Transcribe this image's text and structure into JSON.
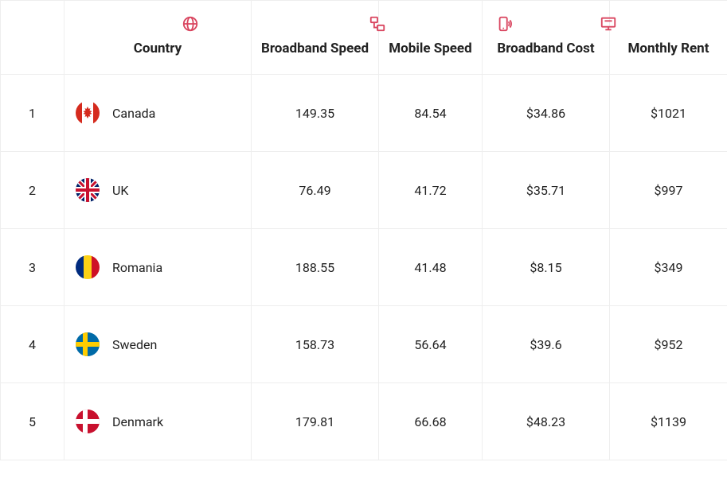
{
  "accent_color": "#d9455f",
  "border_color": "#eeeeee",
  "columns": {
    "rank": {
      "label": ""
    },
    "country": {
      "label": "Country",
      "icon": "globe-icon"
    },
    "bbs": {
      "label": "Broadband Speed",
      "icon": "network-icon"
    },
    "ms": {
      "label": "Mobile Speed",
      "icon": "mobile-signal-icon"
    },
    "bbc": {
      "label": "Broadband Cost",
      "icon": "monitor-icon"
    },
    "rent": {
      "label": "Monthly Rent",
      "icon": "home-icon"
    }
  },
  "rows": [
    {
      "rank": "1",
      "country": "Canada",
      "flag": "ca",
      "bbs": "149.35",
      "ms": "84.54",
      "bbc": "$34.86",
      "rent": "$1021"
    },
    {
      "rank": "2",
      "country": "UK",
      "flag": "uk",
      "bbs": "76.49",
      "ms": "41.72",
      "bbc": "$35.71",
      "rent": "$997"
    },
    {
      "rank": "3",
      "country": "Romania",
      "flag": "ro",
      "bbs": "188.55",
      "ms": "41.48",
      "bbc": "$8.15",
      "rent": "$349"
    },
    {
      "rank": "4",
      "country": "Sweden",
      "flag": "se",
      "bbs": "158.73",
      "ms": "56.64",
      "bbc": "$39.6",
      "rent": "$952"
    },
    {
      "rank": "5",
      "country": "Denmark",
      "flag": "dk",
      "bbs": "179.81",
      "ms": "66.68",
      "bbc": "$48.23",
      "rent": "$1139"
    }
  ]
}
